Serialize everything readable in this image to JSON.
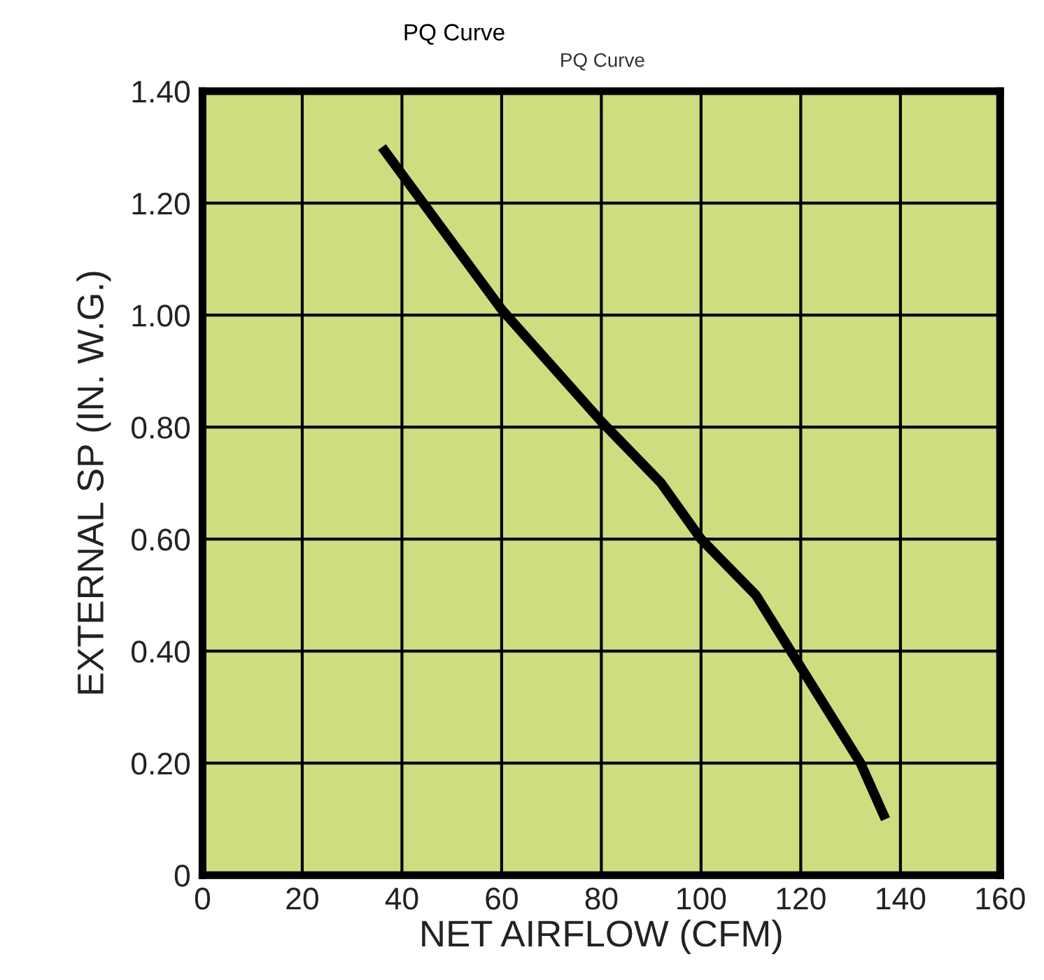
{
  "chart_data": {
    "type": "line",
    "title": "PQ Curve",
    "subtitle": "PQ Curve",
    "xlabel": "NET AIRFLOW (CFM)",
    "ylabel": "EXTERNAL SP (IN. W.G.)",
    "series": [
      {
        "color": "#000000",
        "x": [
          36,
          60,
          80,
          92,
          100,
          111,
          118,
          132,
          137
        ],
        "values": [
          1.3,
          1.01,
          0.81,
          0.7,
          0.6,
          0.5,
          0.4,
          0.2,
          0.1
        ]
      }
    ],
    "xlim": [
      0,
      160
    ],
    "xticks": [
      0,
      20,
      40,
      60,
      80,
      100,
      120,
      140,
      160
    ],
    "ylim": [
      0,
      1.4
    ],
    "yticks": [
      {
        "value": 0,
        "label": "0"
      },
      {
        "value": 0.2,
        "label": "0.20"
      },
      {
        "value": 0.4,
        "label": "0.40"
      },
      {
        "value": 0.6,
        "label": "0.60"
      },
      {
        "value": 0.8,
        "label": "0.80"
      },
      {
        "value": 1.0,
        "label": "1.00"
      },
      {
        "value": 1.2,
        "label": "1.20"
      },
      {
        "value": 1.4,
        "label": "1.40"
      }
    ],
    "grid": true,
    "marker": "none",
    "line_style": "solid"
  }
}
